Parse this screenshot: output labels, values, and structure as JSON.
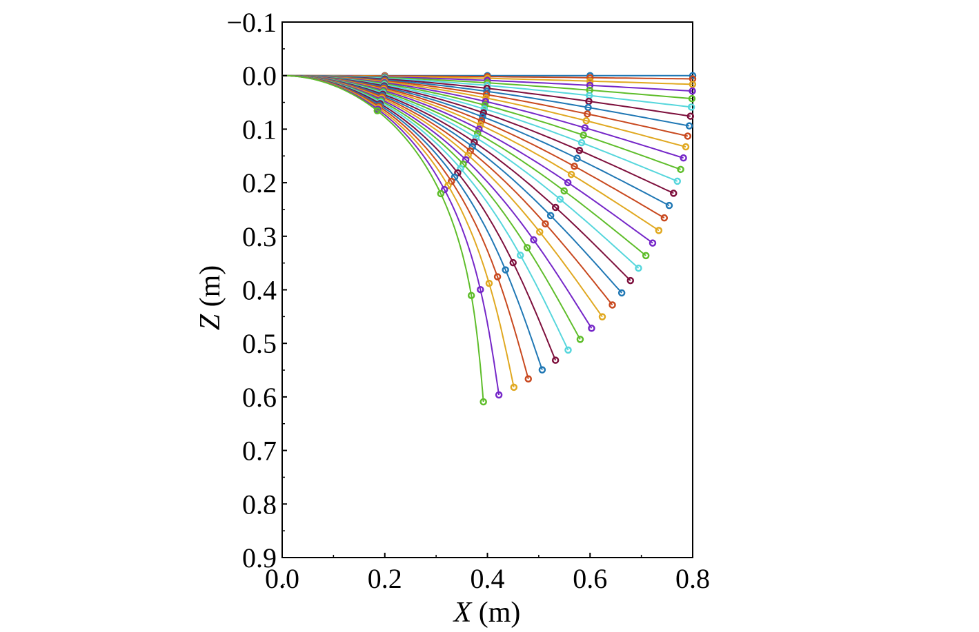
{
  "chart_data": {
    "type": "line",
    "title": "",
    "xlabel": "X (m)",
    "xlabel_var": "X",
    "xlabel_unit": " (m)",
    "ylabel": "Z (m)",
    "ylabel_var": "Z",
    "ylabel_unit": " (m)",
    "xlim": [
      0.0,
      0.8
    ],
    "ylim": [
      -0.1,
      0.9
    ],
    "y_inverted": true,
    "grid": false,
    "legend": "none",
    "xticks": [
      "0.0",
      "0.2",
      "0.4",
      "0.6",
      "0.8"
    ],
    "yticks": [
      "−0.1",
      "0.0",
      "0.1",
      "0.2",
      "0.3",
      "0.4",
      "0.5",
      "0.6",
      "0.7",
      "0.8",
      "0.9"
    ],
    "color_cycle": [
      "#1f77b4",
      "#c8481e",
      "#e0a820",
      "#7526c8",
      "#5ebd2a",
      "#56d6dc",
      "#7d0f3c"
    ],
    "rod_length_m": 0.8,
    "marker_spacing_m": 0.2,
    "series_count": 33,
    "bend_min_deg": 0,
    "bend_max_deg": 85,
    "bend_power": 1.4
  }
}
